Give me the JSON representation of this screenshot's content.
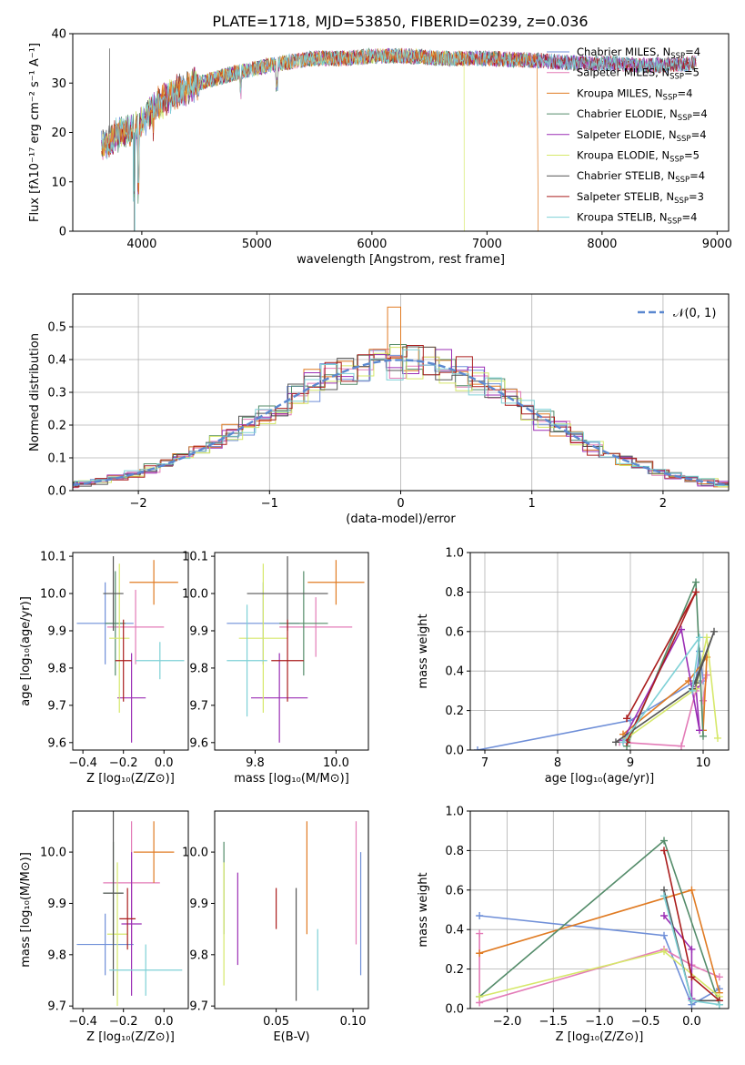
{
  "title": "PLATE=1718, MJD=53850, FIBERID=0239, z=0.036",
  "colors": [
    "#6f8fd8",
    "#e37bb7",
    "#e07b23",
    "#548c6a",
    "#9b2fb5",
    "#d6e86a",
    "#555555",
    "#aa1d1d",
    "#7ed1d6"
  ],
  "chart_data": [
    {
      "id": "spectrum",
      "type": "line",
      "xlabel": "wavelength [Angstrom, rest frame]",
      "ylabel": "Flux [fλ10⁻¹⁷ erg cm⁻² s⁻¹ A⁻¹]",
      "xlim": [
        3400,
        9100
      ],
      "ylim": [
        0,
        40
      ],
      "xticks": [
        "4000",
        "5000",
        "6000",
        "7000",
        "8000",
        "9000"
      ],
      "yticks": [
        "0",
        "10",
        "20",
        "30",
        "40"
      ],
      "legend_position": "right",
      "series": [
        {
          "name": "Chabrier MILES, N",
          "sub": "SSP",
          "n": "=4"
        },
        {
          "name": "Salpeter MILES, N",
          "sub": "SSP",
          "n": "=5"
        },
        {
          "name": "Kroupa MILES, N",
          "sub": "SSP",
          "n": "=4"
        },
        {
          "name": "Chabrier ELODIE, N",
          "sub": "SSP",
          "n": "=4"
        },
        {
          "name": "Salpeter ELODIE, N",
          "sub": "SSP",
          "n": "=4"
        },
        {
          "name": "Kroupa ELODIE, N",
          "sub": "SSP",
          "n": "=5"
        },
        {
          "name": "Chabrier STELIB, N",
          "sub": "SSP",
          "n": "=4"
        },
        {
          "name": "Salpeter STELIB, N",
          "sub": "SSP",
          "n": "=3"
        },
        {
          "name": "Kroupa STELIB, N",
          "sub": "SSP",
          "n": "=4"
        }
      ],
      "continuum": [
        [
          3650,
          17
        ],
        [
          3800,
          20
        ],
        [
          3950,
          21
        ],
        [
          4100,
          25
        ],
        [
          4300,
          28
        ],
        [
          4500,
          30
        ],
        [
          4800,
          32
        ],
        [
          5000,
          33
        ],
        [
          5200,
          34
        ],
        [
          5500,
          35
        ],
        [
          5800,
          35
        ],
        [
          6000,
          35.5
        ],
        [
          6300,
          35.5
        ],
        [
          6600,
          35
        ],
        [
          7000,
          35
        ],
        [
          7500,
          34.5
        ],
        [
          7800,
          34
        ],
        [
          8100,
          34
        ],
        [
          8400,
          33.5
        ],
        [
          8800,
          34
        ]
      ]
    },
    {
      "id": "residuals",
      "type": "step",
      "xlabel": "(data-model)/error",
      "ylabel": "Normed distribution",
      "xlim": [
        -2.5,
        2.5
      ],
      "ylim": [
        0,
        0.6
      ],
      "xticks": [
        "−2",
        "−1",
        "0",
        "1",
        "2"
      ],
      "yticks": [
        "0.0",
        "0.1",
        "0.2",
        "0.3",
        "0.4",
        "0.5"
      ],
      "legend": "𝒩(0, 1)",
      "legend_position": "top-right"
    },
    {
      "id": "age-vs-z",
      "type": "errorbar",
      "xlabel": "Z [log₁₀(Z/Z⊙)]",
      "ylabel": "age  [log₁₀(age/yr)]",
      "xlim": [
        -0.45,
        0.12
      ],
      "ylim": [
        9.58,
        10.11
      ],
      "xticks": [
        "−0.4",
        "−0.2",
        "0.0"
      ],
      "yticks": [
        "9.6",
        "9.7",
        "9.8",
        "9.9",
        "10.0",
        "10.1"
      ],
      "points": [
        {
          "x": -0.29,
          "y": 9.92,
          "xerr": 0.14,
          "yerr": 0.11
        },
        {
          "x": -0.14,
          "y": 9.91,
          "xerr": 0.14,
          "yerr": 0.1
        },
        {
          "x": -0.05,
          "y": 10.03,
          "xerr": 0.12,
          "yerr": 0.06
        },
        {
          "x": -0.24,
          "y": 9.92,
          "xerr": 0.05,
          "yerr": 0.14
        },
        {
          "x": -0.16,
          "y": 9.72,
          "xerr": 0.07,
          "yerr": 0.12
        },
        {
          "x": -0.22,
          "y": 9.88,
          "xerr": 0.05,
          "yerr": 0.2
        },
        {
          "x": -0.25,
          "y": 10.0,
          "xerr": 0.05,
          "yerr": 0.1
        },
        {
          "x": -0.2,
          "y": 9.82,
          "xerr": 0.04,
          "yerr": 0.11
        },
        {
          "x": -0.02,
          "y": 9.82,
          "xerr": 0.12,
          "yerr": 0.05
        }
      ]
    },
    {
      "id": "age-vs-mass",
      "type": "errorbar",
      "xlabel": "mass [log₁₀(M/M⊙)]",
      "xlim": [
        9.7,
        10.08
      ],
      "ylim": [
        9.58,
        10.11
      ],
      "xticks": [
        "9.8",
        "10.0"
      ],
      "yticks": [
        "9.6",
        "9.7",
        "9.8",
        "9.9",
        "10.0",
        "10.1"
      ],
      "points": [
        {
          "x": 9.82,
          "y": 9.92,
          "xerr": 0.09,
          "yerr": 0.11
        },
        {
          "x": 9.95,
          "y": 9.91,
          "xerr": 0.09,
          "yerr": 0.08
        },
        {
          "x": 10.0,
          "y": 10.03,
          "xerr": 0.07,
          "yerr": 0.06
        },
        {
          "x": 9.92,
          "y": 9.92,
          "xerr": 0.06,
          "yerr": 0.14
        },
        {
          "x": 9.86,
          "y": 9.72,
          "xerr": 0.07,
          "yerr": 0.12
        },
        {
          "x": 9.82,
          "y": 9.88,
          "xerr": 0.06,
          "yerr": 0.2
        },
        {
          "x": 9.88,
          "y": 10.0,
          "xerr": 0.1,
          "yerr": 0.1
        },
        {
          "x": 9.88,
          "y": 9.82,
          "xerr": 0.04,
          "yerr": 0.11
        },
        {
          "x": 9.78,
          "y": 9.82,
          "xerr": 0.05,
          "yerr": 0.15
        }
      ]
    },
    {
      "id": "weight-vs-age",
      "type": "line",
      "xlabel": "age  [log₁₀(age/yr)]",
      "ylabel": "mass weight",
      "xlim": [
        6.8,
        10.35
      ],
      "ylim": [
        0,
        1
      ],
      "xticks": [
        "7",
        "8",
        "9",
        "10"
      ],
      "yticks": [
        "0.0",
        "0.2",
        "0.4",
        "0.6",
        "0.8",
        "1.0"
      ],
      "grid": true,
      "series": [
        {
          "points": [
            [
              6.9,
              0.0
            ],
            [
              9.0,
              0.15
            ],
            [
              9.9,
              0.35
            ],
            [
              9.95,
              0.5
            ],
            [
              10.0,
              0.35
            ]
          ]
        },
        {
          "points": [
            [
              8.85,
              0.04
            ],
            [
              9.7,
              0.02
            ],
            [
              9.9,
              0.3
            ],
            [
              10.05,
              0.38
            ],
            [
              10.0,
              0.25
            ]
          ]
        },
        {
          "points": [
            [
              8.9,
              0.08
            ],
            [
              9.8,
              0.35
            ],
            [
              10.05,
              0.47
            ],
            [
              10.0,
              0.1
            ]
          ]
        },
        {
          "points": [
            [
              8.95,
              0.02
            ],
            [
              9.9,
              0.85
            ],
            [
              10.0,
              0.07
            ]
          ]
        },
        {
          "points": [
            [
              8.9,
              0.05
            ],
            [
              9.7,
              0.61
            ],
            [
              9.95,
              0.1
            ],
            [
              9.9,
              0.32
            ]
          ]
        },
        {
          "points": [
            [
              8.95,
              0.06
            ],
            [
              9.9,
              0.31
            ],
            [
              10.05,
              0.57
            ],
            [
              10.2,
              0.06
            ]
          ]
        },
        {
          "points": [
            [
              8.8,
              0.04
            ],
            [
              9.85,
              0.31
            ],
            [
              10.15,
              0.6
            ],
            [
              9.9,
              0.34
            ]
          ]
        },
        {
          "points": [
            [
              8.95,
              0.16
            ],
            [
              9.9,
              0.8
            ],
            [
              8.95,
              0.04
            ]
          ]
        },
        {
          "points": [
            [
              8.9,
              0.04
            ],
            [
              9.95,
              0.57
            ],
            [
              9.85,
              0.3
            ]
          ]
        }
      ]
    },
    {
      "id": "mass-vs-z",
      "type": "errorbar",
      "xlabel": "Z [log₁₀(Z/Z⊙)]",
      "ylabel": "mass [log₁₀(M/M⊙)]",
      "xlim": [
        -0.45,
        0.12
      ],
      "ylim": [
        9.695,
        10.08
      ],
      "xticks": [
        "−0.4",
        "−0.2",
        "0.0"
      ],
      "yticks": [
        "9.7",
        "9.8",
        "9.9",
        "10.0"
      ],
      "points": [
        {
          "x": -0.29,
          "y": 9.82,
          "xerr": 0.14,
          "yerr": 0.06
        },
        {
          "x": -0.16,
          "y": 9.94,
          "xerr": 0.14,
          "yerr": 0.12
        },
        {
          "x": -0.05,
          "y": 10.0,
          "xerr": 0.1,
          "yerr": 0.06
        },
        {
          "x": -0.25,
          "y": 9.92,
          "xerr": 0.05,
          "yerr": 0.1
        },
        {
          "x": -0.16,
          "y": 9.86,
          "xerr": 0.05,
          "yerr": 0.14
        },
        {
          "x": -0.23,
          "y": 9.84,
          "xerr": 0.05,
          "yerr": 0.14
        },
        {
          "x": -0.25,
          "y": 9.92,
          "xerr": 0.05,
          "yerr": 0.2
        },
        {
          "x": -0.18,
          "y": 9.87,
          "xerr": 0.04,
          "yerr": 0.06
        },
        {
          "x": -0.09,
          "y": 9.77,
          "xerr": 0.18,
          "yerr": 0.05
        }
      ]
    },
    {
      "id": "mass-vs-ebv",
      "type": "errorbar",
      "xlabel": "E(B-V)",
      "xlim": [
        0.01,
        0.11
      ],
      "ylim": [
        9.695,
        10.08
      ],
      "xticks": [
        "0.05",
        "0.10"
      ],
      "yticks": [
        "9.7",
        "9.8",
        "9.9",
        "10.0"
      ],
      "points": [
        {
          "x": 0.105,
          "y": 9.88,
          "xerr": 0,
          "yerr": 0.12
        },
        {
          "x": 0.102,
          "y": 9.94,
          "xerr": 0,
          "yerr": 0.12
        },
        {
          "x": 0.07,
          "y": 9.95,
          "xerr": 0,
          "yerr": 0.11
        },
        {
          "x": 0.016,
          "y": 9.93,
          "xerr": 0,
          "yerr": 0.09
        },
        {
          "x": 0.025,
          "y": 9.87,
          "xerr": 0,
          "yerr": 0.09
        },
        {
          "x": 0.016,
          "y": 9.86,
          "xerr": 0,
          "yerr": 0.12
        },
        {
          "x": 0.063,
          "y": 9.82,
          "xerr": 0,
          "yerr": 0.11
        },
        {
          "x": 0.05,
          "y": 9.89,
          "xerr": 0,
          "yerr": 0.04
        },
        {
          "x": 0.077,
          "y": 9.79,
          "xerr": 0,
          "yerr": 0.06
        }
      ]
    },
    {
      "id": "weight-vs-z",
      "type": "line",
      "xlabel": "Z [log₁₀(Z/Z⊙)]",
      "ylabel": "mass weight",
      "xlim": [
        -2.4,
        0.4
      ],
      "ylim": [
        0,
        1
      ],
      "xticks": [
        "−2.0",
        "−1.5",
        "−1.0",
        "−0.5",
        "0.0"
      ],
      "yticks": [
        "0.0",
        "0.2",
        "0.4",
        "0.6",
        "0.8",
        "1.0"
      ],
      "grid": true,
      "series": [
        {
          "points": [
            [
              -2.3,
              0.47
            ],
            [
              -0.3,
              0.37
            ],
            [
              0.0,
              0.02
            ],
            [
              0.3,
              0.1
            ]
          ]
        },
        {
          "points": [
            [
              -2.3,
              0.38
            ],
            [
              -2.3,
              0.03
            ],
            [
              -0.3,
              0.3
            ],
            [
              0.0,
              0.22
            ],
            [
              0.3,
              0.16
            ]
          ]
        },
        {
          "points": [
            [
              -2.3,
              0.28
            ],
            [
              0.0,
              0.6
            ],
            [
              0.3,
              0.08
            ]
          ]
        },
        {
          "points": [
            [
              -2.3,
              0.06
            ],
            [
              -0.3,
              0.85
            ],
            [
              0.3,
              0.02
            ]
          ]
        },
        {
          "points": [
            [
              -0.3,
              0.47
            ],
            [
              0.0,
              0.3
            ],
            [
              0.0,
              0.05
            ]
          ]
        },
        {
          "points": [
            [
              -2.3,
              0.06
            ],
            [
              -0.3,
              0.29
            ],
            [
              0.3,
              0.06
            ]
          ]
        },
        {
          "points": [
            [
              -0.3,
              0.6
            ],
            [
              0.0,
              0.04
            ],
            [
              0.3,
              0.04
            ]
          ]
        },
        {
          "points": [
            [
              -0.3,
              0.8
            ],
            [
              0.0,
              0.16
            ],
            [
              0.3,
              0.04
            ]
          ]
        },
        {
          "points": [
            [
              -0.3,
              0.57
            ],
            [
              0.0,
              0.04
            ],
            [
              0.3,
              0.02
            ]
          ]
        }
      ]
    }
  ]
}
